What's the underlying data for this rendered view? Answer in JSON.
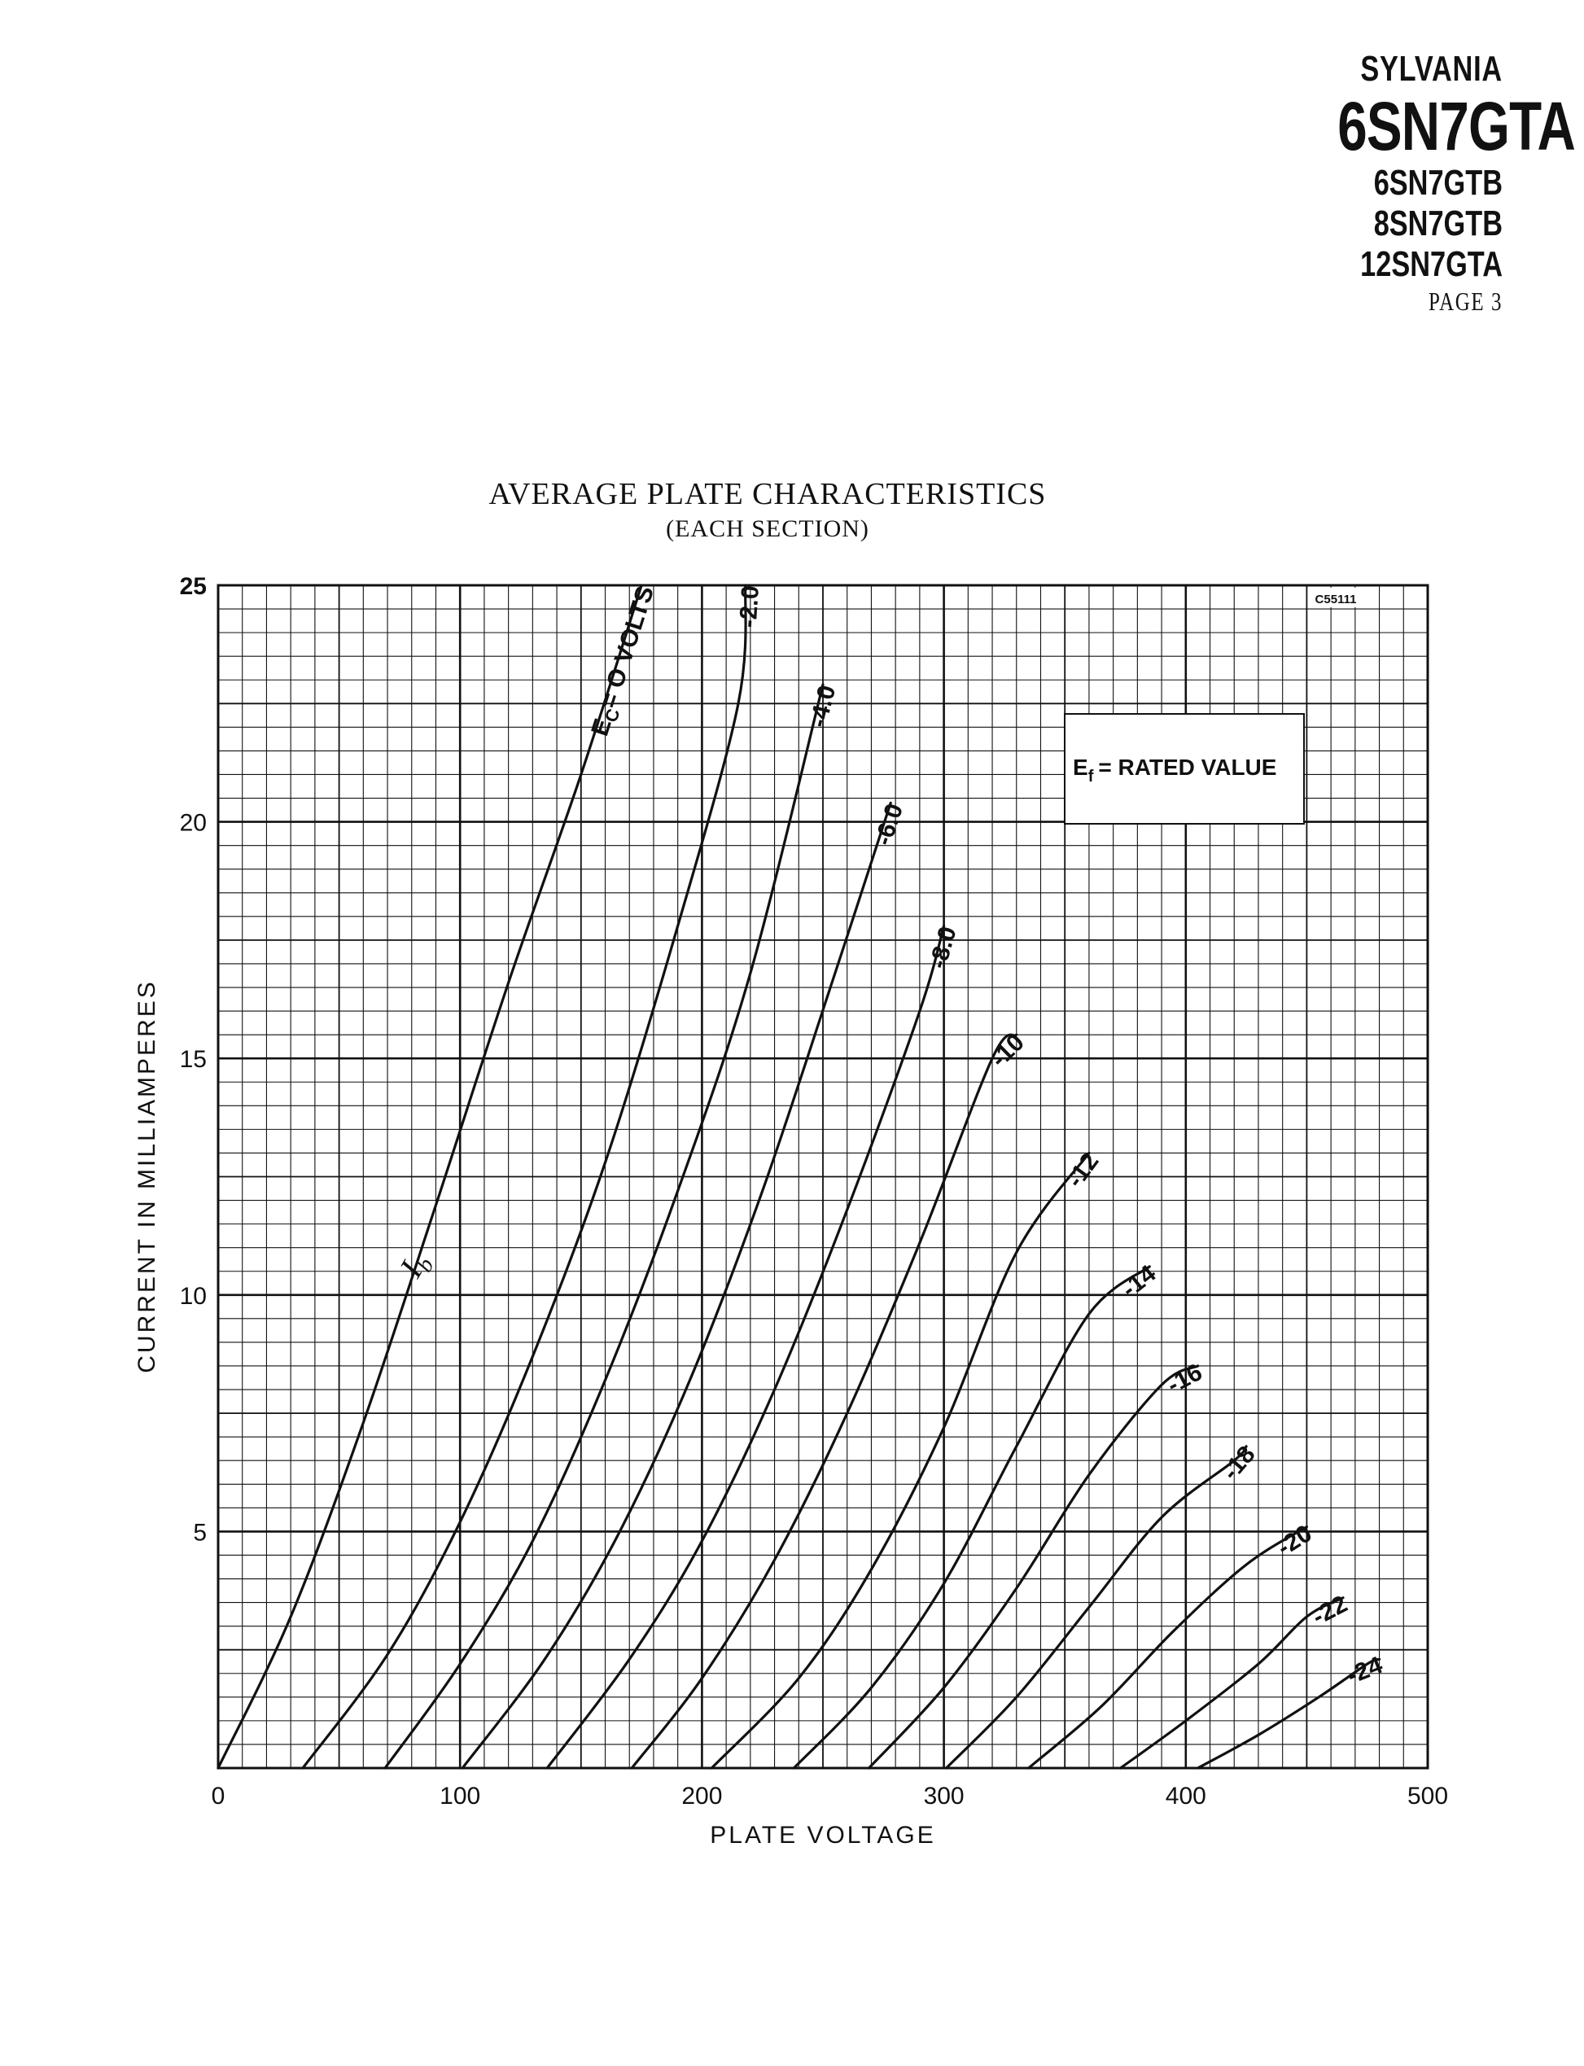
{
  "header": {
    "brand": "SYLVANIA",
    "main_type": "6SN7GTA",
    "alt_types": [
      "6SN7GTB",
      "8SN7GTB",
      "12SN7GTA"
    ],
    "page_ref": "PAGE 3"
  },
  "chart_data": {
    "type": "line",
    "title": "AVERAGE PLATE CHARACTERISTICS",
    "subtitle": "(EACH SECTION)",
    "xlabel": "PLATE VOLTAGE",
    "ylabel": "CURRENT IN MILLIAMPERES",
    "xlim": [
      0,
      500
    ],
    "ylim": [
      0,
      25
    ],
    "xticks": [
      "0",
      "100",
      "200",
      "300",
      "400",
      "500"
    ],
    "yticks": [
      "5",
      "10",
      "15",
      "20",
      "25"
    ],
    "grid": true,
    "code_mark": "C55111",
    "note_box": {
      "text": "= RATED VALUE",
      "symbol": "E",
      "subscript": "f"
    },
    "current_label": {
      "text": "I",
      "subscript": "b"
    },
    "first_label_prefix": {
      "symbol": "E",
      "subscript": "C"
    },
    "series": [
      {
        "name": "= O VOLTS",
        "points": [
          [
            0,
            0
          ],
          [
            30,
            3.2
          ],
          [
            60,
            7.3
          ],
          [
            90,
            11.9
          ],
          [
            120,
            16.6
          ],
          [
            150,
            21.0
          ],
          [
            175,
            25
          ]
        ]
      },
      {
        "name": "-2.0",
        "points": [
          [
            35,
            0
          ],
          [
            70,
            2.4
          ],
          [
            100,
            5.2
          ],
          [
            130,
            8.7
          ],
          [
            160,
            12.8
          ],
          [
            190,
            17.8
          ],
          [
            215,
            22.5
          ],
          [
            218,
            25
          ]
        ]
      },
      {
        "name": "-4.0",
        "points": [
          [
            69,
            0
          ],
          [
            100,
            2.2
          ],
          [
            130,
            4.8
          ],
          [
            160,
            8.2
          ],
          [
            190,
            12.2
          ],
          [
            220,
            16.8
          ],
          [
            250,
            22.9
          ]
        ]
      },
      {
        "name": "-6.0",
        "points": [
          [
            101,
            0
          ],
          [
            135,
            2.3
          ],
          [
            165,
            4.9
          ],
          [
            195,
            8.2
          ],
          [
            225,
            12.2
          ],
          [
            255,
            16.8
          ],
          [
            278,
            20.4
          ]
        ]
      },
      {
        "name": "-8.0",
        "points": [
          [
            136,
            0
          ],
          [
            170,
            2.3
          ],
          [
            200,
            4.8
          ],
          [
            230,
            8.0
          ],
          [
            260,
            11.8
          ],
          [
            290,
            16.0
          ],
          [
            300,
            17.8
          ]
        ]
      },
      {
        "name": "-10",
        "points": [
          [
            171,
            0
          ],
          [
            200,
            1.9
          ],
          [
            230,
            4.4
          ],
          [
            260,
            7.5
          ],
          [
            290,
            11.1
          ],
          [
            320,
            15.0
          ],
          [
            330,
            15.5
          ]
        ]
      },
      {
        "name": "-12",
        "points": [
          [
            204,
            0
          ],
          [
            240,
            1.9
          ],
          [
            270,
            4.2
          ],
          [
            300,
            7.2
          ],
          [
            330,
            10.9
          ],
          [
            360,
            13.0
          ]
        ]
      },
      {
        "name": "-14",
        "points": [
          [
            238,
            0
          ],
          [
            270,
            1.7
          ],
          [
            300,
            3.9
          ],
          [
            330,
            6.8
          ],
          [
            360,
            9.6
          ],
          [
            385,
            10.6
          ]
        ]
      },
      {
        "name": "-16",
        "points": [
          [
            269,
            0
          ],
          [
            300,
            1.7
          ],
          [
            330,
            3.8
          ],
          [
            360,
            6.2
          ],
          [
            390,
            8.1
          ],
          [
            405,
            8.5
          ]
        ]
      },
      {
        "name": "-18",
        "points": [
          [
            301,
            0
          ],
          [
            330,
            1.5
          ],
          [
            360,
            3.4
          ],
          [
            390,
            5.3
          ],
          [
            420,
            6.5
          ],
          [
            425,
            6.8
          ]
        ]
      },
      {
        "name": "-20",
        "points": [
          [
            335,
            0
          ],
          [
            365,
            1.3
          ],
          [
            395,
            2.9
          ],
          [
            425,
            4.3
          ],
          [
            450,
            5.1
          ]
        ]
      },
      {
        "name": "-22",
        "points": [
          [
            373,
            0
          ],
          [
            400,
            1.0
          ],
          [
            430,
            2.2
          ],
          [
            450,
            3.2
          ],
          [
            465,
            3.6
          ]
        ]
      },
      {
        "name": "-24",
        "points": [
          [
            405,
            0
          ],
          [
            430,
            0.7
          ],
          [
            455,
            1.5
          ],
          [
            475,
            2.2
          ],
          [
            480,
            2.3
          ]
        ]
      }
    ]
  }
}
